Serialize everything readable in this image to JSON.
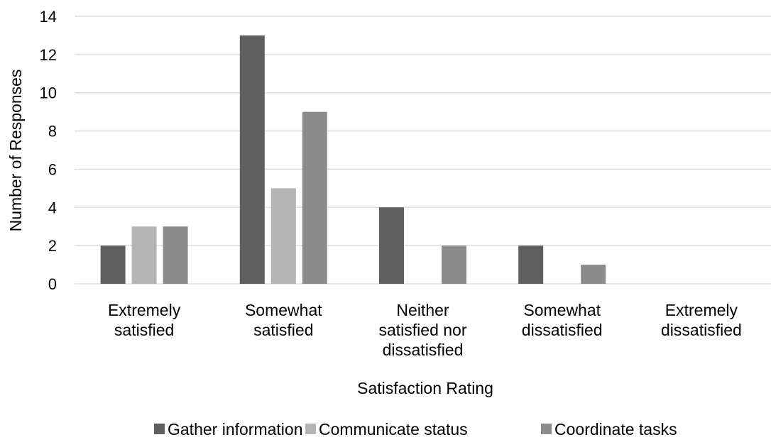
{
  "chart_data": {
    "type": "bar",
    "title": "",
    "xlabel": "Satisfaction Rating",
    "ylabel": "Number of Responses",
    "ylim": [
      0,
      14
    ],
    "yticks": [
      0,
      2,
      4,
      6,
      8,
      10,
      12,
      14
    ],
    "grid": true,
    "legend_position": "bottom",
    "categories": [
      [
        "Extremely",
        "satisfied"
      ],
      [
        "Somewhat",
        "satisfied"
      ],
      [
        "Neither",
        "satisfied nor",
        "dissatisfied"
      ],
      [
        "Somewhat",
        "dissatisfied"
      ],
      [
        "Extremely",
        "dissatisfied"
      ]
    ],
    "series": [
      {
        "name": "Gather information",
        "color": "#5f5f5f",
        "values": [
          2,
          13,
          4,
          2,
          0
        ]
      },
      {
        "name": "Communicate status",
        "color": "#b4b4b4",
        "values": [
          3,
          5,
          0,
          0,
          0
        ]
      },
      {
        "name": "Coordinate tasks",
        "color": "#8c8c8c",
        "values": [
          3,
          9,
          2,
          1,
          0
        ]
      }
    ]
  }
}
